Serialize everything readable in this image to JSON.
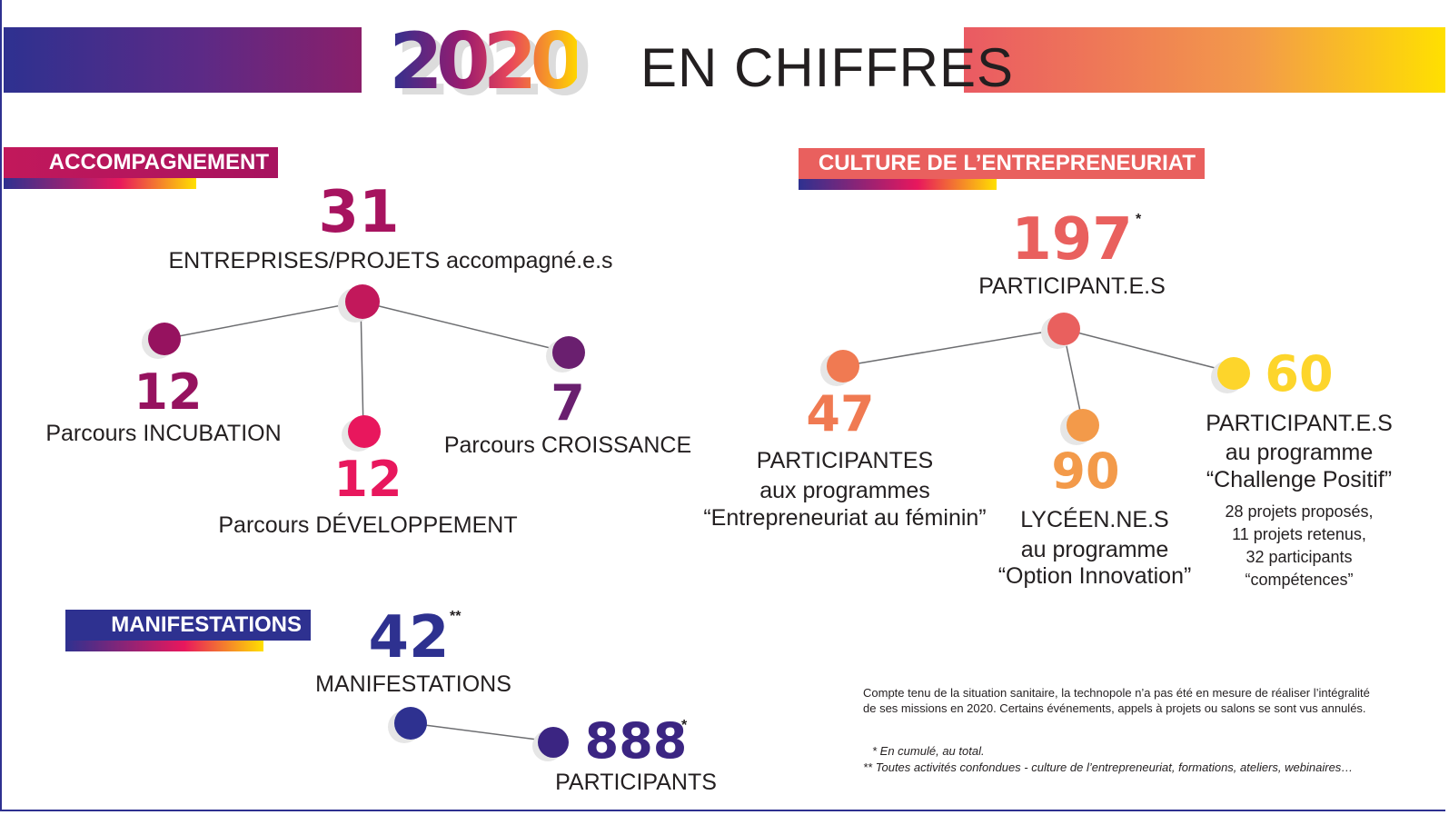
{
  "header": {
    "year": "2020",
    "title": "EN CHIFFRES"
  },
  "accompagnement": {
    "label": "ACCOMPAGNEMENT",
    "main": {
      "value": "31",
      "label": "ENTREPRISES/PROJETS accompagné.e.s"
    },
    "incubation": {
      "value": "12",
      "label": "Parcours INCUBATION"
    },
    "developpement": {
      "value": "12",
      "label": "Parcours DÉVELOPPEMENT"
    },
    "croissance": {
      "value": "7",
      "label": "Parcours CROISSANCE"
    }
  },
  "culture": {
    "label": "CULTURE DE L’ENTREPRENEURIAT",
    "main": {
      "value": "197",
      "star": "*",
      "label": "PARTICIPANT.E.S"
    },
    "feminin": {
      "value": "47",
      "line1": "PARTICIPANTES",
      "line2": "aux programmes",
      "line3": "“Entrepreneuriat au féminin”"
    },
    "innovation": {
      "value": "90",
      "line1": "LYCÉEN.NE.S",
      "line2": "au programme",
      "line3": "“Option Innovation”"
    },
    "challenge": {
      "value": "60",
      "line1": "PARTICIPANT.E.S",
      "line2": "au programme",
      "line3": "“Challenge Positif”",
      "details": [
        "28 projets proposés,",
        "11 projets retenus,",
        "32 participants",
        "“compétences”"
      ]
    }
  },
  "manifestations": {
    "label": "MANIFESTATIONS",
    "main": {
      "value": "42",
      "star": "**",
      "label": "MANIFESTATIONS"
    },
    "participants": {
      "value": "888",
      "star": "*",
      "label": "PARTICIPANTS"
    }
  },
  "notes": {
    "text": "Compte tenu de la situation sanitaire, la technopole n’a pas été en mesure de réaliser l’intégralité de ses missions en 2020. Certains événements, appels à projets ou salons se sont vus annulés.",
    "footnote1": "* En cumulé, au total.",
    "footnote2": "** Toutes activités confondues - culture de l’entrepreneuriat, formations, ateliers, webinaires…"
  },
  "colors": {
    "navy": "#2e3190",
    "plum": "#96125f",
    "magenta": "#e8175d",
    "purple": "#6a1f6f",
    "coral": "#e9605e",
    "orange": "#f08a4b",
    "yellow": "#fdd52b",
    "violet": "#3b2582"
  }
}
